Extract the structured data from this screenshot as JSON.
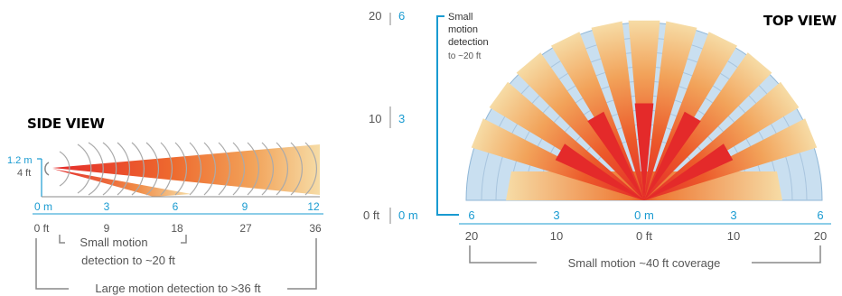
{
  "side_view": {
    "title": "SIDE VIEW",
    "height_m": "1.2 m",
    "height_ft": "4 ft",
    "meter_ticks": [
      "0 m",
      "3",
      "6",
      "9",
      "12"
    ],
    "feet_ticks": [
      "0 ft",
      "9",
      "18",
      "27",
      "36"
    ],
    "small_motion_line1": "Small motion",
    "small_motion_line2": "detection to ~20 ft",
    "large_motion": "Large motion detection to >36 ft"
  },
  "top_view": {
    "title": "TOP VIEW",
    "y_ft_ticks": [
      "20",
      "10",
      "0 ft"
    ],
    "y_m_ticks": [
      "6",
      "3",
      "0 m"
    ],
    "small_detection_line1": "Small",
    "small_detection_line2": "motion",
    "small_detection_line3": "detection",
    "small_detection_line4": "to ~20 ft",
    "x_m_ticks": [
      "6",
      "3",
      "0 m",
      "3",
      "6"
    ],
    "x_ft_ticks": [
      "20",
      "10",
      "0 ft",
      "10",
      "20"
    ],
    "coverage": "Small motion ~40 ft coverage"
  },
  "colors": {
    "accent_blue": "#1a9bd1",
    "beam_red": "#e42a2a",
    "beam_orange": "#ef8a3c",
    "beam_tan": "#f6d9a0",
    "zone_blue": "#c9dff0"
  }
}
